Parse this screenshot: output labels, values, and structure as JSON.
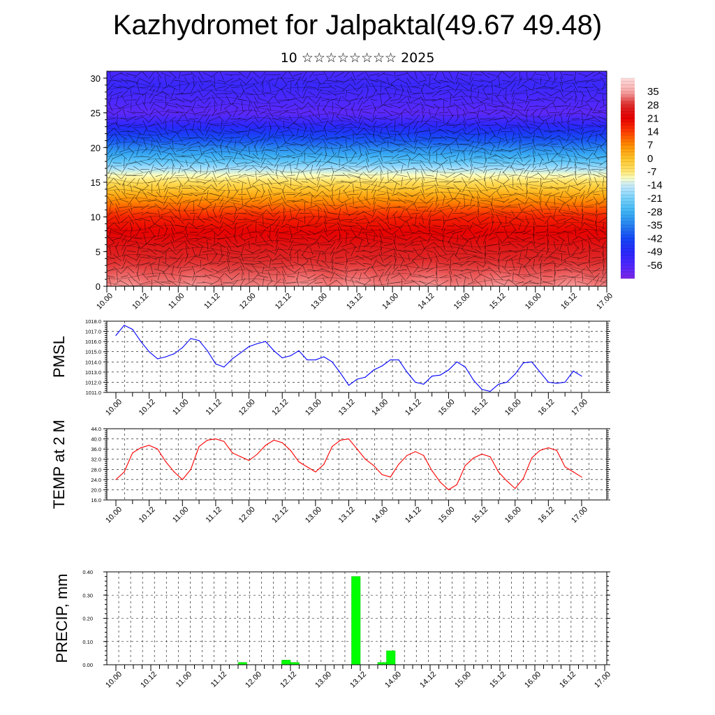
{
  "title": "Kazhydromet for Jalpaktal(49.67 49.48)",
  "subtitle": "10 ☆☆☆☆☆☆☆☆ 2025",
  "time_labels": [
    "10.00",
    "10.12",
    "11.00",
    "11.12",
    "12.00",
    "12.12",
    "13.00",
    "13.12",
    "14.00",
    "14.12",
    "15.00",
    "15.12",
    "16.00",
    "16.12",
    "17.00"
  ],
  "chart_data": [
    {
      "type": "heatmap",
      "title": "",
      "xlabel": "",
      "ylabel": "",
      "y_ticks": [
        "0",
        "5",
        "10",
        "15",
        "20",
        "25",
        "30"
      ],
      "ylim": [
        0,
        31
      ],
      "colorbar_labels": [
        "35",
        "28",
        "21",
        "14",
        "7",
        "0",
        "-7",
        "-14",
        "-21",
        "-28",
        "-35",
        "-42",
        "-49",
        "-56"
      ],
      "colorbar_range": [
        -63,
        42
      ],
      "overlay": "wind vectors and contour lines",
      "profile_note": "warm near surface, cold aloft",
      "profile_stops": [
        {
          "level": 0,
          "value": 33
        },
        {
          "level": 5,
          "value": 26
        },
        {
          "level": 10,
          "value": 17
        },
        {
          "level": 13,
          "value": 4
        },
        {
          "level": 16,
          "value": -10
        },
        {
          "level": 18,
          "value": -24
        },
        {
          "level": 21,
          "value": -40
        },
        {
          "level": 25,
          "value": -58
        },
        {
          "level": 29,
          "value": -52
        },
        {
          "level": 31,
          "value": -55
        }
      ],
      "warm_cores_at_times": [
        "10.06",
        "11.06",
        "12.18",
        "13.12",
        "14.12",
        "15.12",
        "16.12"
      ]
    },
    {
      "type": "line",
      "ylabel": "PMSL",
      "color": "#0000ff",
      "ylim": [
        1011.0,
        1018.0
      ],
      "y_ticks": [
        "1011.0",
        "1012.0",
        "1013.0",
        "1014.0",
        "1015.0",
        "1016.0",
        "1017.0",
        "1018.0"
      ],
      "x": [
        "10.00",
        "10.03",
        "10.06",
        "10.09",
        "10.12",
        "10.15",
        "10.18",
        "10.21",
        "11.00",
        "11.03",
        "11.06",
        "11.09",
        "11.12",
        "11.15",
        "11.18",
        "11.21",
        "12.00",
        "12.03",
        "12.06",
        "12.09",
        "12.12",
        "12.15",
        "12.18",
        "12.21",
        "13.00",
        "13.03",
        "13.06",
        "13.09",
        "13.12",
        "13.15",
        "13.18",
        "13.21",
        "14.00",
        "14.03",
        "14.06",
        "14.09",
        "14.12",
        "14.15",
        "14.18",
        "14.21",
        "15.00",
        "15.03",
        "15.06",
        "15.09",
        "15.12",
        "15.15",
        "15.18",
        "15.21",
        "16.00",
        "16.03",
        "16.06",
        "16.09",
        "16.12",
        "16.15",
        "16.18",
        "16.21",
        "17.00"
      ],
      "values": [
        1016.6,
        1017.6,
        1017.2,
        1016.0,
        1015.0,
        1014.3,
        1014.5,
        1014.8,
        1015.4,
        1016.3,
        1016.1,
        1015.1,
        1013.8,
        1013.5,
        1014.3,
        1014.9,
        1015.5,
        1015.8,
        1016.0,
        1015.1,
        1014.4,
        1014.6,
        1015.1,
        1014.2,
        1014.2,
        1014.5,
        1014.0,
        1012.9,
        1011.7,
        1012.3,
        1012.5,
        1013.2,
        1013.6,
        1014.2,
        1014.2,
        1013.0,
        1012.0,
        1011.8,
        1012.6,
        1012.7,
        1013.2,
        1014.0,
        1013.5,
        1012.2,
        1011.3,
        1011.1,
        1011.8,
        1012.0,
        1012.8,
        1013.9,
        1014.0,
        1013.0,
        1012.0,
        1011.9,
        1012.0,
        1013.1,
        1012.6
      ]
    },
    {
      "type": "line",
      "ylabel": "TEMP at 2 M",
      "color": "#ff0000",
      "ylim": [
        16.0,
        44.0
      ],
      "y_ticks": [
        "16.0",
        "20.0",
        "24.0",
        "28.0",
        "32.0",
        "36.0",
        "40.0",
        "44.0"
      ],
      "x": [
        "10.00",
        "10.03",
        "10.06",
        "10.09",
        "10.12",
        "10.15",
        "10.18",
        "10.21",
        "11.00",
        "11.03",
        "11.06",
        "11.09",
        "11.12",
        "11.15",
        "11.18",
        "11.21",
        "12.00",
        "12.03",
        "12.06",
        "12.09",
        "12.12",
        "12.15",
        "12.18",
        "12.21",
        "13.00",
        "13.03",
        "13.06",
        "13.09",
        "13.12",
        "13.15",
        "13.18",
        "13.21",
        "14.00",
        "14.03",
        "14.06",
        "14.09",
        "14.12",
        "14.15",
        "14.18",
        "14.21",
        "15.00",
        "15.03",
        "15.06",
        "15.09",
        "15.12",
        "15.15",
        "15.18",
        "15.21",
        "16.00",
        "16.03",
        "16.06",
        "16.09",
        "16.12",
        "16.15",
        "16.18",
        "16.21",
        "17.00"
      ],
      "values": [
        24.0,
        27.0,
        34.5,
        36.5,
        37.5,
        36.0,
        31.0,
        27.0,
        24.0,
        28.0,
        37.0,
        39.5,
        40.0,
        39.0,
        34.5,
        33.0,
        31.5,
        34.0,
        37.5,
        39.5,
        38.5,
        35.5,
        31.0,
        29.0,
        27.0,
        30.0,
        37.0,
        39.5,
        40.0,
        36.0,
        32.0,
        29.5,
        26.0,
        25.0,
        30.0,
        33.5,
        35.0,
        33.5,
        27.5,
        23.0,
        20.0,
        22.0,
        29.5,
        32.5,
        34.0,
        33.0,
        27.0,
        23.5,
        20.5,
        24.5,
        32.5,
        35.5,
        36.5,
        35.5,
        29.0,
        27.0,
        25.0
      ]
    },
    {
      "type": "bar",
      "ylabel": "PRECIP, mm",
      "color": "#00ff00",
      "ylim": [
        0.0,
        0.4
      ],
      "y_ticks": [
        "0.00",
        "0.10",
        "0.20",
        "0.30",
        "0.40"
      ],
      "x": [
        "11.21",
        "12.12",
        "12.15",
        "13.12",
        "13.21",
        "14.00"
      ],
      "values": [
        0.01,
        0.02,
        0.01,
        0.38,
        0.01,
        0.06
      ]
    }
  ]
}
